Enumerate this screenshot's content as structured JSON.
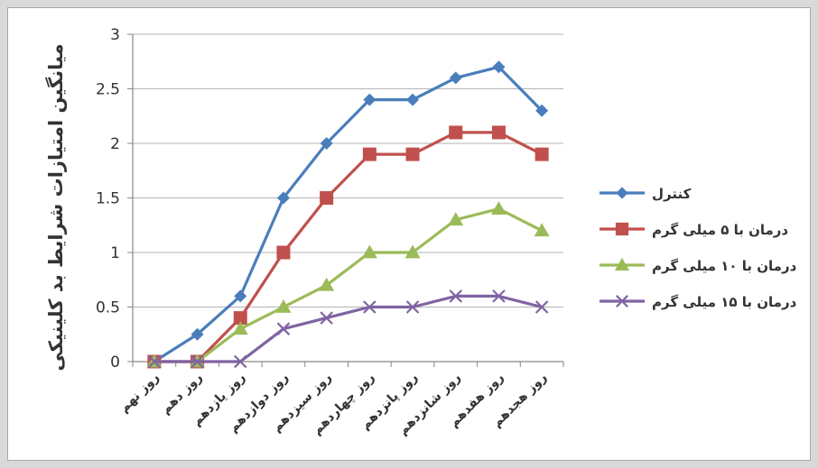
{
  "chart_data": {
    "type": "line",
    "title": "",
    "ylabel": "میانگین امتیازات شرایط بد کلینیکی",
    "xlabel": "",
    "ylim": [
      0,
      3
    ],
    "yticks": [
      "0",
      "0.5",
      "1",
      "1.5",
      "2",
      "2.5",
      "3"
    ],
    "grid": "horizontal",
    "legend_position": "right",
    "categories": [
      "روز نهم",
      "روز دهم",
      "روز یازدهم",
      "روز دوازدهم",
      "روز سیزدهم",
      "روز چهاردهم",
      "روز پانزدهم",
      "روز شانزدهم",
      "روز هفدهم",
      "روز هجدهم"
    ],
    "series": [
      {
        "name": "کنترل",
        "color": "#4a7ebb",
        "marker": "diamond",
        "values": [
          0,
          0.25,
          0.6,
          1.5,
          2.0,
          2.4,
          2.4,
          2.6,
          2.7,
          2.3
        ]
      },
      {
        "name": "درمان با ۵ میلی گرم",
        "color": "#c0504d",
        "marker": "square",
        "values": [
          0,
          0,
          0.4,
          1.0,
          1.5,
          1.9,
          1.9,
          2.1,
          2.1,
          1.9
        ]
      },
      {
        "name": "درمان با ۱۰ میلی گرم",
        "color": "#9bbb59",
        "marker": "triangle",
        "values": [
          0,
          0,
          0.3,
          0.5,
          0.7,
          1.0,
          1.0,
          1.3,
          1.4,
          1.2
        ]
      },
      {
        "name": "درمان با ۱۵ میلی گرم",
        "color": "#8064a2",
        "marker": "x",
        "values": [
          0,
          0,
          0,
          0.3,
          0.4,
          0.5,
          0.5,
          0.6,
          0.6,
          0.5
        ]
      }
    ]
  }
}
